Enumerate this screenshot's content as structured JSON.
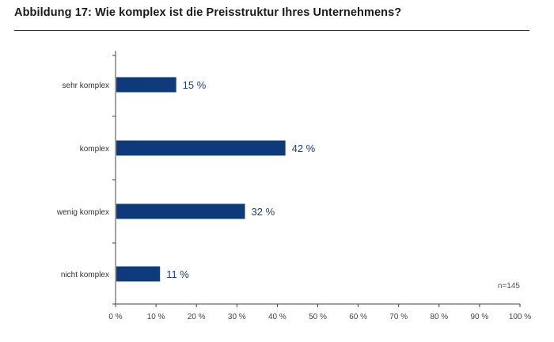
{
  "chart_data": {
    "type": "bar",
    "orientation": "horizontal",
    "title": "Abbildung 17: Wie komplex ist die Preisstruktur Ihres Unternehmens?",
    "categories": [
      "sehr komplex",
      "komplex",
      "wenig komplex",
      "nicht komplex"
    ],
    "values": [
      15,
      42,
      32,
      11
    ],
    "value_labels": [
      "15 %",
      "42 %",
      "32 %",
      "11 %"
    ],
    "xlim": [
      0,
      100
    ],
    "x_ticks": [
      0,
      10,
      20,
      30,
      40,
      50,
      60,
      70,
      80,
      90,
      100
    ],
    "x_tick_labels": [
      "0 %",
      "10 %",
      "20 %",
      "30 %",
      "40 %",
      "50 %",
      "60 %",
      "70 %",
      "80 %",
      "90 %",
      "100 %"
    ],
    "note": "n=145",
    "grid": false,
    "bar_color": "#0d3a7a"
  }
}
